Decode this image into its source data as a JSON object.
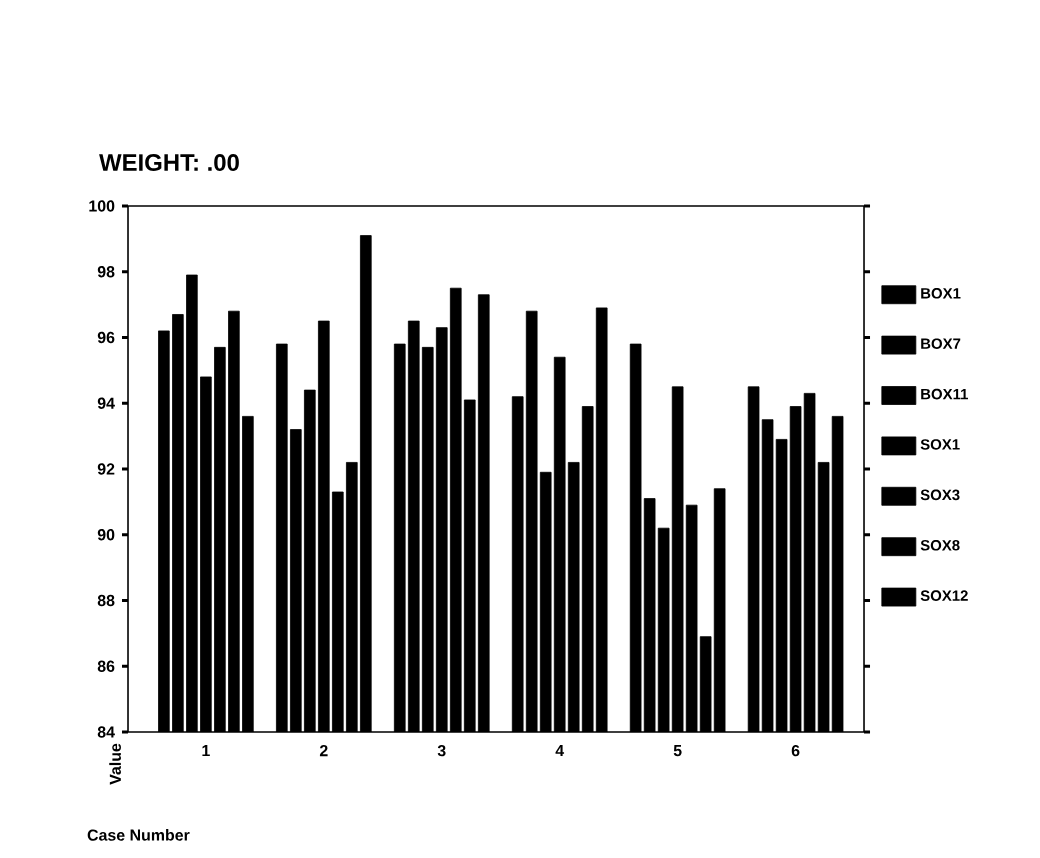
{
  "chart_data": {
    "type": "bar",
    "title": "WEIGHT: .00",
    "xlabel": "Case Number",
    "ylabel": "Value",
    "categories": [
      "1",
      "2",
      "3",
      "4",
      "5",
      "6"
    ],
    "series": [
      {
        "name": "BOX1",
        "color": "#000000",
        "values": [
          96.2,
          95.8,
          95.8,
          94.2,
          95.8,
          94.5
        ]
      },
      {
        "name": "BOX7",
        "color": "#000000",
        "values": [
          96.7,
          93.2,
          96.5,
          96.8,
          91.1,
          93.5
        ]
      },
      {
        "name": "BOX11",
        "color": "#000000",
        "values": [
          97.9,
          94.4,
          95.7,
          91.9,
          90.2,
          92.9
        ]
      },
      {
        "name": "SOX1",
        "color": "#000000",
        "values": [
          94.8,
          96.5,
          96.3,
          95.4,
          94.5,
          93.9
        ]
      },
      {
        "name": "SOX3",
        "color": "#000000",
        "values": [
          95.7,
          91.3,
          97.5,
          92.2,
          90.9,
          94.3
        ]
      },
      {
        "name": "SOX8",
        "color": "#000000",
        "values": [
          96.8,
          92.2,
          94.1,
          93.9,
          86.9,
          92.2
        ]
      },
      {
        "name": "SOX12",
        "color": "#000000",
        "values": [
          93.6,
          99.1,
          97.3,
          96.9,
          91.4,
          93.6
        ]
      }
    ],
    "ylim": [
      84,
      100
    ],
    "yticks": [
      84,
      86,
      88,
      90,
      92,
      94,
      96,
      98,
      100
    ],
    "legend": "right"
  }
}
